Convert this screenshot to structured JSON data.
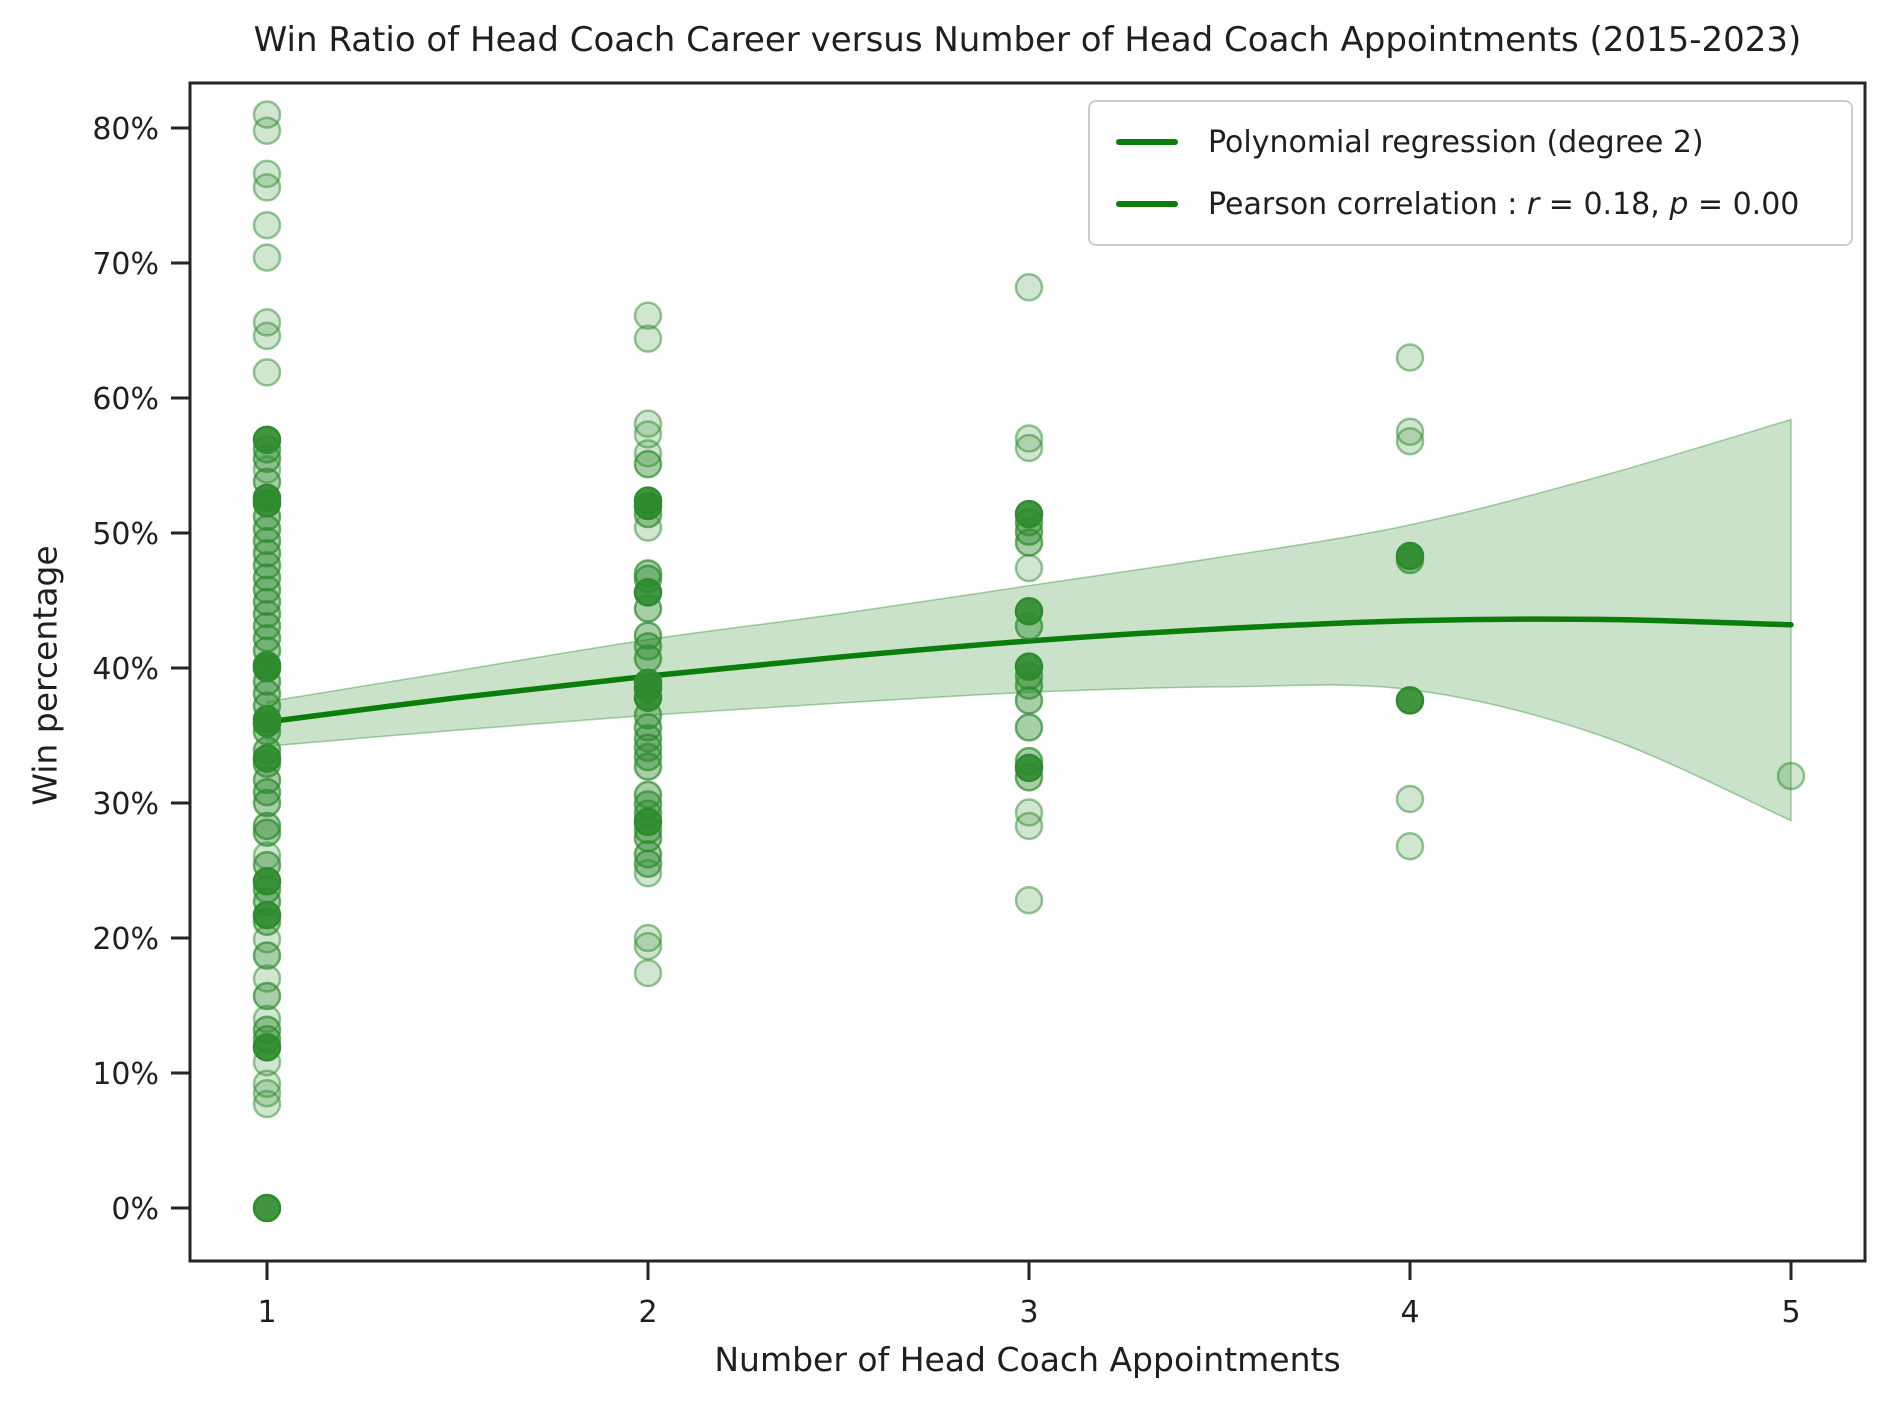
{
  "title": "Win Ratio of Head Coach Career versus Number of Head Coach Appointments (2015-2023)",
  "axes": {
    "x_label": "Number of Head Coach Appointments",
    "y_label": "Win percentage"
  },
  "legend": {
    "items": [
      {
        "label": "Polynomial regression (degree 2)"
      },
      {
        "parts": [
          "Pearson correlation : ",
          "r",
          " = 0.18, ",
          "p",
          " = 0.00"
        ]
      }
    ]
  },
  "colors": {
    "line_green": "#0a7d0a",
    "scatter_green": "#2e8b2e",
    "band_green": "#57a457",
    "text": "#1f1f1f",
    "spine": "#252525",
    "legend_border": "#cccccc"
  },
  "chart_data": {
    "type": "scatter",
    "title": "Win Ratio of Head Coach Career versus Number of Head Coach Appointments (2015-2023)",
    "xlabel": "Number of Head Coach Appointments",
    "ylabel": "Win percentage",
    "x_ticks": [
      1,
      2,
      3,
      4,
      5
    ],
    "x_tick_labels": [
      "1",
      "2",
      "3",
      "4",
      "5"
    ],
    "y_ticks_pct": [
      0,
      10,
      20,
      30,
      40,
      50,
      60,
      70,
      80
    ],
    "y_tick_labels": [
      "0%",
      "10%",
      "20%",
      "30%",
      "40%",
      "50%",
      "60%",
      "70%",
      "80%"
    ],
    "xlim": [
      0.8,
      5.19
    ],
    "ylim_pct": [
      -3.9,
      83.3
    ],
    "grid": false,
    "legend_position": "upper right",
    "pearson": {
      "r": 0.18,
      "p": 0.0
    },
    "regression": {
      "degree": 2,
      "x": [
        1,
        1.5,
        2,
        2.5,
        3,
        3.5,
        4,
        4.5,
        5
      ],
      "y_pct": [
        36.0,
        37.8,
        39.4,
        40.8,
        42.0,
        42.9,
        43.5,
        43.6,
        43.2
      ]
    },
    "ci_band": {
      "x": [
        1,
        1.5,
        2,
        2.5,
        3,
        3.5,
        4,
        4.5,
        5
      ],
      "top_pct": [
        37.5,
        39.8,
        42.1,
        44.0,
        46.1,
        48.2,
        50.6,
        54.2,
        58.4
      ],
      "bottom_pct": [
        34.2,
        35.4,
        36.5,
        37.4,
        38.2,
        38.6,
        38.4,
        35.0,
        28.7
      ]
    },
    "points_format": "[appointments, win_pct, opacity_class 1=light 2=medium 3=dark]",
    "points": [
      [
        1,
        81.0,
        1
      ],
      [
        1,
        79.8,
        1
      ],
      [
        1,
        76.6,
        1
      ],
      [
        1,
        75.6,
        1
      ],
      [
        1,
        72.8,
        1
      ],
      [
        1,
        70.4,
        1
      ],
      [
        1,
        65.6,
        1
      ],
      [
        1,
        64.6,
        1
      ],
      [
        1,
        61.9,
        1
      ],
      [
        1,
        56.9,
        3
      ],
      [
        1,
        56.2,
        2
      ],
      [
        1,
        55.5,
        2
      ],
      [
        1,
        54.7,
        1
      ],
      [
        1,
        53.8,
        2
      ],
      [
        1,
        52.6,
        3
      ],
      [
        1,
        52.2,
        3
      ],
      [
        1,
        51.2,
        2
      ],
      [
        1,
        50.3,
        2
      ],
      [
        1,
        49.4,
        2
      ],
      [
        1,
        48.5,
        2
      ],
      [
        1,
        47.6,
        2
      ],
      [
        1,
        46.7,
        2
      ],
      [
        1,
        45.8,
        2
      ],
      [
        1,
        44.9,
        2
      ],
      [
        1,
        44.0,
        2
      ],
      [
        1,
        43.1,
        2
      ],
      [
        1,
        42.2,
        2
      ],
      [
        1,
        41.3,
        2
      ],
      [
        1,
        40.2,
        3
      ],
      [
        1,
        40.0,
        3
      ],
      [
        1,
        39.0,
        2
      ],
      [
        1,
        38.1,
        2
      ],
      [
        1,
        37.2,
        2
      ],
      [
        1,
        36.2,
        3
      ],
      [
        1,
        35.9,
        3
      ],
      [
        1,
        35.3,
        2
      ],
      [
        1,
        33.9,
        2
      ],
      [
        1,
        33.3,
        3
      ],
      [
        1,
        32.9,
        2
      ],
      [
        1,
        31.7,
        2
      ],
      [
        1,
        30.8,
        2
      ],
      [
        1,
        30.0,
        2
      ],
      [
        1,
        28.3,
        2
      ],
      [
        1,
        27.8,
        2
      ],
      [
        1,
        26.1,
        1
      ],
      [
        1,
        25.4,
        2
      ],
      [
        1,
        24.2,
        3
      ],
      [
        1,
        23.6,
        2
      ],
      [
        1,
        22.7,
        2
      ],
      [
        1,
        21.7,
        3
      ],
      [
        1,
        21.2,
        2
      ],
      [
        1,
        19.9,
        1
      ],
      [
        1,
        18.7,
        2
      ],
      [
        1,
        17.0,
        1
      ],
      [
        1,
        15.7,
        2
      ],
      [
        1,
        14.0,
        1
      ],
      [
        1,
        13.2,
        2
      ],
      [
        1,
        12.5,
        2
      ],
      [
        1,
        11.9,
        3
      ],
      [
        1,
        10.8,
        1
      ],
      [
        1,
        9.2,
        1
      ],
      [
        1,
        8.5,
        1
      ],
      [
        1,
        7.7,
        1
      ],
      [
        1,
        0.0,
        3
      ],
      [
        2,
        66.1,
        1
      ],
      [
        2,
        64.4,
        1
      ],
      [
        2,
        58.1,
        1
      ],
      [
        2,
        57.3,
        1
      ],
      [
        2,
        55.9,
        1
      ],
      [
        2,
        55.1,
        2
      ],
      [
        2,
        52.4,
        3
      ],
      [
        2,
        52.0,
        3
      ],
      [
        2,
        51.4,
        2
      ],
      [
        2,
        50.4,
        1
      ],
      [
        2,
        47.0,
        2
      ],
      [
        2,
        46.6,
        2
      ],
      [
        2,
        45.6,
        3
      ],
      [
        2,
        44.4,
        2
      ],
      [
        2,
        42.4,
        2
      ],
      [
        2,
        41.6,
        2
      ],
      [
        2,
        40.7,
        2
      ],
      [
        2,
        38.9,
        3
      ],
      [
        2,
        38.5,
        3
      ],
      [
        2,
        37.8,
        3
      ],
      [
        2,
        36.5,
        2
      ],
      [
        2,
        35.6,
        2
      ],
      [
        2,
        34.8,
        2
      ],
      [
        2,
        34.1,
        2
      ],
      [
        2,
        33.4,
        2
      ],
      [
        2,
        32.7,
        2
      ],
      [
        2,
        30.6,
        2
      ],
      [
        2,
        29.9,
        2
      ],
      [
        2,
        29.2,
        2
      ],
      [
        2,
        28.6,
        3
      ],
      [
        2,
        28.0,
        2
      ],
      [
        2,
        27.4,
        2
      ],
      [
        2,
        26.2,
        2
      ],
      [
        2,
        25.5,
        2
      ],
      [
        2,
        24.8,
        1
      ],
      [
        2,
        20.0,
        1
      ],
      [
        2,
        19.4,
        1
      ],
      [
        2,
        17.4,
        1
      ],
      [
        3,
        68.2,
        1
      ],
      [
        3,
        57.0,
        1
      ],
      [
        3,
        56.3,
        1
      ],
      [
        3,
        51.4,
        3
      ],
      [
        3,
        50.8,
        2
      ],
      [
        3,
        50.1,
        2
      ],
      [
        3,
        49.3,
        2
      ],
      [
        3,
        47.4,
        1
      ],
      [
        3,
        44.2,
        3
      ],
      [
        3,
        43.1,
        2
      ],
      [
        3,
        40.1,
        3
      ],
      [
        3,
        39.4,
        2
      ],
      [
        3,
        38.7,
        2
      ],
      [
        3,
        37.6,
        2
      ],
      [
        3,
        35.6,
        2
      ],
      [
        3,
        33.1,
        2
      ],
      [
        3,
        32.6,
        3
      ],
      [
        3,
        31.9,
        2
      ],
      [
        3,
        29.3,
        1
      ],
      [
        3,
        28.3,
        1
      ],
      [
        3,
        22.8,
        1
      ],
      [
        4,
        63.0,
        1
      ],
      [
        4,
        57.5,
        1
      ],
      [
        4,
        56.8,
        1
      ],
      [
        4,
        48.3,
        3
      ],
      [
        4,
        48.0,
        2
      ],
      [
        4,
        37.6,
        3
      ],
      [
        4,
        30.3,
        1
      ],
      [
        4,
        26.8,
        1
      ],
      [
        5,
        32.0,
        1
      ]
    ]
  }
}
